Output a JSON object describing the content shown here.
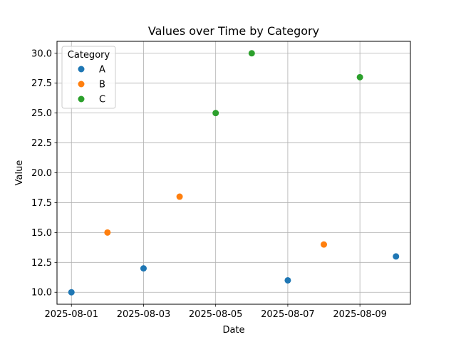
{
  "chart_data": {
    "type": "scatter",
    "title": "Values over Time by Category",
    "xlabel": "Date",
    "ylabel": "Value",
    "x_ticks": [
      "2025-08-01",
      "2025-08-03",
      "2025-08-05",
      "2025-08-07",
      "2025-08-09"
    ],
    "y_ticks": [
      "10.0",
      "12.5",
      "15.0",
      "17.5",
      "20.0",
      "22.5",
      "25.0",
      "27.5",
      "30.0"
    ],
    "xlim": [
      "2025-07-31T14:24",
      "2025-08-10T09:36"
    ],
    "ylim": [
      9.0,
      31.0
    ],
    "grid": true,
    "legend": {
      "title": "Category",
      "placement": "top-left"
    },
    "series": [
      {
        "name": "A",
        "color": "#1f77b4",
        "points": [
          {
            "x": "2025-08-01",
            "y": 10
          },
          {
            "x": "2025-08-03",
            "y": 12
          },
          {
            "x": "2025-08-07",
            "y": 11
          },
          {
            "x": "2025-08-10",
            "y": 13
          }
        ]
      },
      {
        "name": "B",
        "color": "#ff7f0e",
        "points": [
          {
            "x": "2025-08-02",
            "y": 15
          },
          {
            "x": "2025-08-04",
            "y": 18
          },
          {
            "x": "2025-08-08",
            "y": 14
          }
        ]
      },
      {
        "name": "C",
        "color": "#2ca02c",
        "points": [
          {
            "x": "2025-08-05",
            "y": 25
          },
          {
            "x": "2025-08-06",
            "y": 30
          },
          {
            "x": "2025-08-09",
            "y": 28
          }
        ]
      }
    ]
  }
}
